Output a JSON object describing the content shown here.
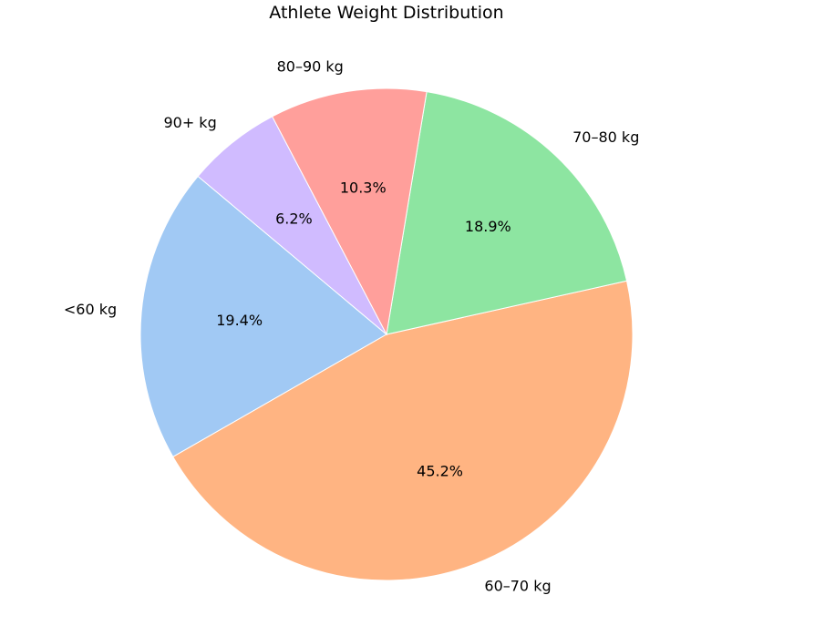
{
  "chart_data": {
    "type": "pie",
    "title": "Athlete Weight Distribution",
    "start_angle_deg": 140,
    "direction": "counterclockwise",
    "slices": [
      {
        "label": "<60 kg",
        "value": 19.4,
        "pct_label": "19.4%",
        "color": "#a1c9f4"
      },
      {
        "label": "60–70 kg",
        "value": 45.2,
        "pct_label": "45.2%",
        "color": "#ffb482"
      },
      {
        "label": "70–80 kg",
        "value": 18.9,
        "pct_label": "18.9%",
        "color": "#8de5a1"
      },
      {
        "label": "80–90 kg",
        "value": 10.3,
        "pct_label": "10.3%",
        "color": "#ff9f9b"
      },
      {
        "label": "90+ kg",
        "value": 6.2,
        "pct_label": "6.2%",
        "color": "#d0bbff"
      }
    ]
  }
}
